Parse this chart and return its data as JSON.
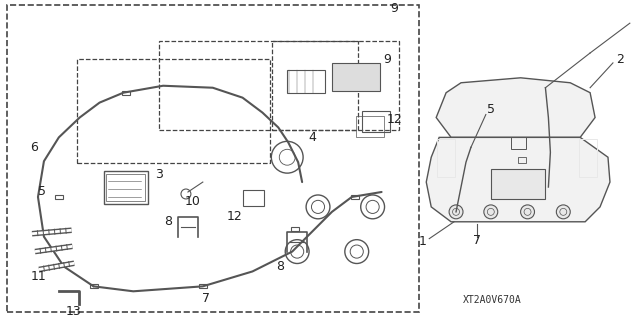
{
  "bg_color": "#ffffff",
  "diagram_code": "XT2A0V670A",
  "line_color": "#555555",
  "text_color": "#222222",
  "label_font_size": 9
}
